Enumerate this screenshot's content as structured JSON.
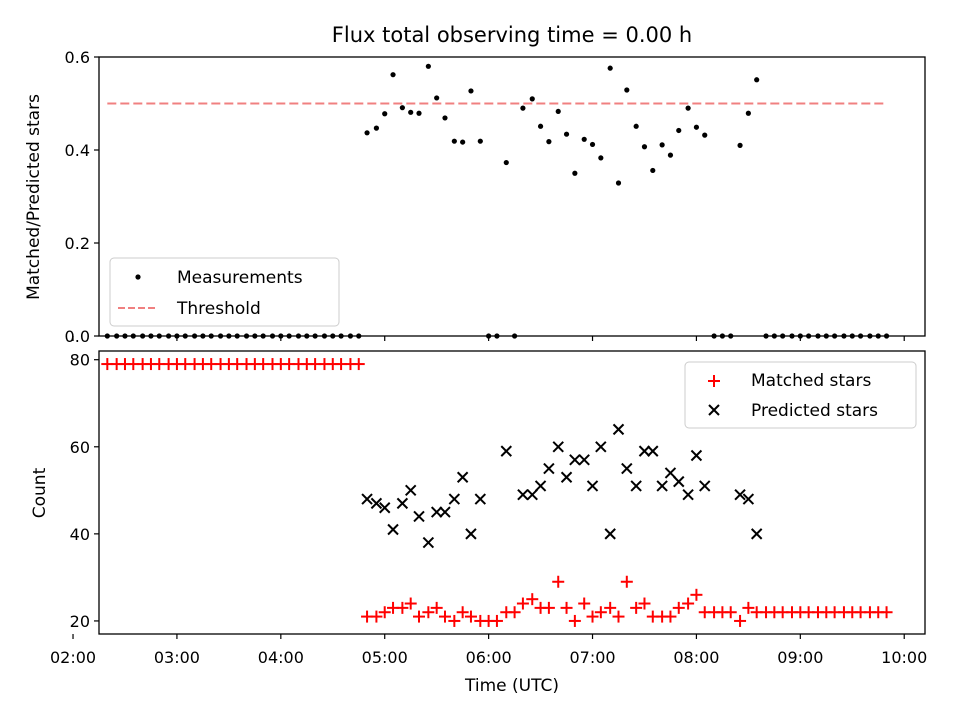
{
  "title": "Flux total observing time = 0.00 h",
  "colors": {
    "measure": "#000000",
    "threshold": "#f08080",
    "matched": "#ff0000",
    "predicted": "#000000"
  },
  "chart_data": [
    {
      "type": "scatter",
      "ylabel": "Matched/Predicted stars",
      "xlim": [
        2.25,
        10.2
      ],
      "ylim": [
        0,
        0.6
      ],
      "yticks": [
        0.0,
        0.2,
        0.4,
        0.6
      ],
      "ytick_labels": [
        "0.0",
        "0.2",
        "0.4",
        "0.6"
      ],
      "legend": {
        "placement": "lower-left",
        "entries": [
          "Measurements",
          "Threshold"
        ]
      },
      "threshold": {
        "name": "Threshold",
        "value": 0.5,
        "x_range": [
          2.33,
          9.83
        ]
      },
      "series": [
        {
          "name": "Measurements",
          "x": [
            2.33,
            2.42,
            2.5,
            2.58,
            2.67,
            2.75,
            2.83,
            2.92,
            3.0,
            3.08,
            3.17,
            3.25,
            3.33,
            3.42,
            3.5,
            3.58,
            3.67,
            3.75,
            3.83,
            3.92,
            4.0,
            4.08,
            4.17,
            4.25,
            4.33,
            4.42,
            4.5,
            4.58,
            4.67,
            4.75,
            4.83,
            4.92,
            5.0,
            5.08,
            5.17,
            5.25,
            5.33,
            5.42,
            5.5,
            5.58,
            5.67,
            5.75,
            5.83,
            5.92,
            6.0,
            6.08,
            6.17,
            6.25,
            6.33,
            6.42,
            6.5,
            6.58,
            6.67,
            6.75,
            6.83,
            6.92,
            7.0,
            7.08,
            7.17,
            7.25,
            7.33,
            7.42,
            7.5,
            7.58,
            7.67,
            7.75,
            7.83,
            7.92,
            8.0,
            8.08,
            8.17,
            8.25,
            8.33,
            8.42,
            8.5,
            8.58,
            8.67,
            8.75,
            8.83,
            8.92,
            9.0,
            9.08,
            9.17,
            9.25,
            9.33,
            9.42,
            9.5,
            9.58,
            9.67,
            9.75,
            9.83
          ],
          "y": [
            0,
            0,
            0,
            0,
            0,
            0,
            0,
            0,
            0,
            0,
            0,
            0,
            0,
            0,
            0,
            0,
            0,
            0,
            0,
            0,
            0,
            0,
            0,
            0,
            0,
            0,
            0,
            0,
            0,
            0,
            0.437,
            0.447,
            0.478,
            0.562,
            0.491,
            0.481,
            0.479,
            0.58,
            0.512,
            0.469,
            0.419,
            0.417,
            0.527,
            0.419,
            0,
            0,
            0.373,
            0,
            0.49,
            0.51,
            0.451,
            0.418,
            0.483,
            0.434,
            0.35,
            0.423,
            0.412,
            0.383,
            0.576,
            0.329,
            0.529,
            0.451,
            0.407,
            0.356,
            0.411,
            0.389,
            0.442,
            0.49,
            0.449,
            0.432,
            0,
            0,
            0,
            0.41,
            0.479,
            0.551,
            0,
            0,
            0,
            0,
            0,
            0,
            0,
            0,
            0,
            0,
            0,
            0,
            0,
            0,
            0
          ]
        }
      ]
    },
    {
      "type": "scatter",
      "ylabel": "Count",
      "xlabel": "Time (UTC)",
      "xlim": [
        2.25,
        10.2
      ],
      "ylim": [
        17,
        82
      ],
      "yticks": [
        20,
        40,
        60,
        80
      ],
      "ytick_labels": [
        "20",
        "40",
        "60",
        "80"
      ],
      "xticks": [
        2,
        3,
        4,
        5,
        6,
        7,
        8,
        9,
        10
      ],
      "xtick_labels": [
        "02:00",
        "03:00",
        "04:00",
        "05:00",
        "06:00",
        "07:00",
        "08:00",
        "09:00",
        "10:00"
      ],
      "legend": {
        "placement": "upper-right",
        "entries": [
          "Matched stars",
          "Predicted stars"
        ]
      },
      "series": [
        {
          "name": "Matched stars",
          "x": [
            2.33,
            2.42,
            2.5,
            2.58,
            2.67,
            2.75,
            2.83,
            2.92,
            3.0,
            3.08,
            3.17,
            3.25,
            3.33,
            3.42,
            3.5,
            3.58,
            3.67,
            3.75,
            3.83,
            3.92,
            4.0,
            4.08,
            4.17,
            4.25,
            4.33,
            4.42,
            4.5,
            4.58,
            4.67,
            4.75,
            4.83,
            4.92,
            5.0,
            5.08,
            5.17,
            5.25,
            5.33,
            5.42,
            5.5,
            5.58,
            5.67,
            5.75,
            5.83,
            5.92,
            6.0,
            6.08,
            6.17,
            6.25,
            6.33,
            6.42,
            6.5,
            6.58,
            6.67,
            6.75,
            6.83,
            6.92,
            7.0,
            7.08,
            7.17,
            7.25,
            7.33,
            7.42,
            7.5,
            7.58,
            7.67,
            7.75,
            7.83,
            7.92,
            8.0,
            8.08,
            8.17,
            8.25,
            8.33,
            8.42,
            8.5,
            8.58,
            8.67,
            8.75,
            8.83,
            8.92,
            9.0,
            9.08,
            9.17,
            9.25,
            9.33,
            9.42,
            9.5,
            9.58,
            9.67,
            9.75,
            9.83
          ],
          "y": [
            79,
            79,
            79,
            79,
            79,
            79,
            79,
            79,
            79,
            79,
            79,
            79,
            79,
            79,
            79,
            79,
            79,
            79,
            79,
            79,
            79,
            79,
            79,
            79,
            79,
            79,
            79,
            79,
            79,
            79,
            21,
            21,
            22,
            23,
            23,
            24,
            21,
            22,
            23,
            21,
            20,
            22,
            21,
            20,
            20,
            20,
            22,
            22,
            24,
            25,
            23,
            23,
            29,
            23,
            20,
            24,
            21,
            22,
            23,
            21,
            29,
            23,
            24,
            21,
            21,
            21,
            23,
            24,
            26,
            22,
            22,
            22,
            22,
            20,
            23,
            22,
            22,
            22,
            22,
            22,
            22,
            22,
            22,
            22,
            22,
            22,
            22,
            22,
            22,
            22,
            22
          ]
        },
        {
          "name": "Predicted stars",
          "x": [
            4.83,
            4.92,
            5.0,
            5.08,
            5.17,
            5.25,
            5.33,
            5.42,
            5.5,
            5.58,
            5.67,
            5.75,
            5.83,
            5.92,
            6.17,
            6.33,
            6.42,
            6.5,
            6.58,
            6.67,
            6.75,
            6.83,
            6.92,
            7.0,
            7.08,
            7.17,
            7.25,
            7.33,
            7.42,
            7.5,
            7.58,
            7.67,
            7.75,
            7.83,
            7.92,
            8.0,
            8.08,
            8.42,
            8.5,
            8.58
          ],
          "y": [
            48,
            47,
            46,
            41,
            47,
            50,
            44,
            38,
            45,
            45,
            48,
            53,
            40,
            48,
            59,
            49,
            49,
            51,
            55,
            60,
            53,
            57,
            57,
            51,
            60,
            40,
            64,
            55,
            51,
            59,
            59,
            51,
            54,
            52,
            49,
            58,
            51,
            49,
            48,
            40
          ]
        }
      ]
    }
  ]
}
